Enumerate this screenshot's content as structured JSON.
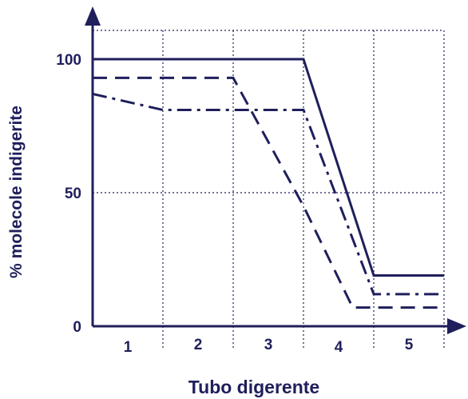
{
  "chart_data": {
    "type": "line",
    "xlabel": "Tubo digerente",
    "ylabel": "% molecole indigerite",
    "categories": [
      "1",
      "2",
      "3",
      "4",
      "5"
    ],
    "yticks": [
      {
        "value": 0,
        "label": "0"
      },
      {
        "value": 50,
        "label": "50"
      },
      {
        "value": 100,
        "label": "100"
      }
    ],
    "xlim": [
      0,
      5
    ],
    "ylim": [
      0,
      110
    ],
    "grid": true,
    "series": [
      {
        "style": "solid",
        "x": [
          0,
          3,
          4,
          5
        ],
        "y": [
          100,
          100,
          19,
          19
        ]
      },
      {
        "style": "dashed",
        "x": [
          0,
          2,
          3,
          3.7,
          5
        ],
        "y": [
          93,
          93,
          45,
          7,
          7
        ]
      },
      {
        "style": "dash-dot",
        "x": [
          0,
          1,
          3,
          4,
          5
        ],
        "y": [
          87,
          81,
          81,
          12,
          12
        ]
      }
    ]
  },
  "colors": {
    "ink": "#1f1f5c",
    "grid": "#1f1f5c",
    "background": "#ffffff"
  }
}
